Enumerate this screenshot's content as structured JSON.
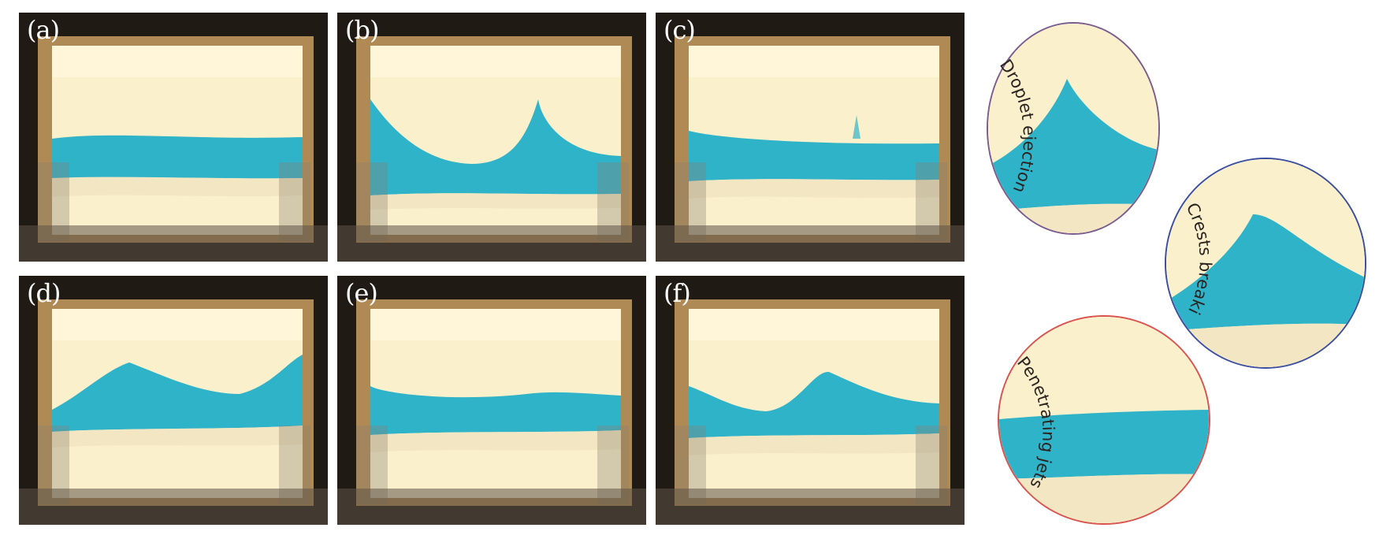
{
  "panels": [
    {
      "id": "a",
      "label": "(a)"
    },
    {
      "id": "b",
      "label": "(b)"
    },
    {
      "id": "c",
      "label": "(c)"
    },
    {
      "id": "d",
      "label": "(d)"
    },
    {
      "id": "e",
      "label": "(e)"
    },
    {
      "id": "f",
      "label": "(f)"
    }
  ],
  "zooms": [
    {
      "id": "droplet",
      "label": "Droplet ejection",
      "border_color": "#7a5c8e"
    },
    {
      "id": "crests",
      "label": "Crests breaking",
      "border_color": "#3a4ea0"
    },
    {
      "id": "jets",
      "label": "Penetrating jets",
      "border_color": "#d9534f"
    }
  ],
  "colors": {
    "water": "#2fb3c9",
    "background_light": "#fbf0cc",
    "frame_dark": "#201a15",
    "text_dark": "#2b2320"
  }
}
